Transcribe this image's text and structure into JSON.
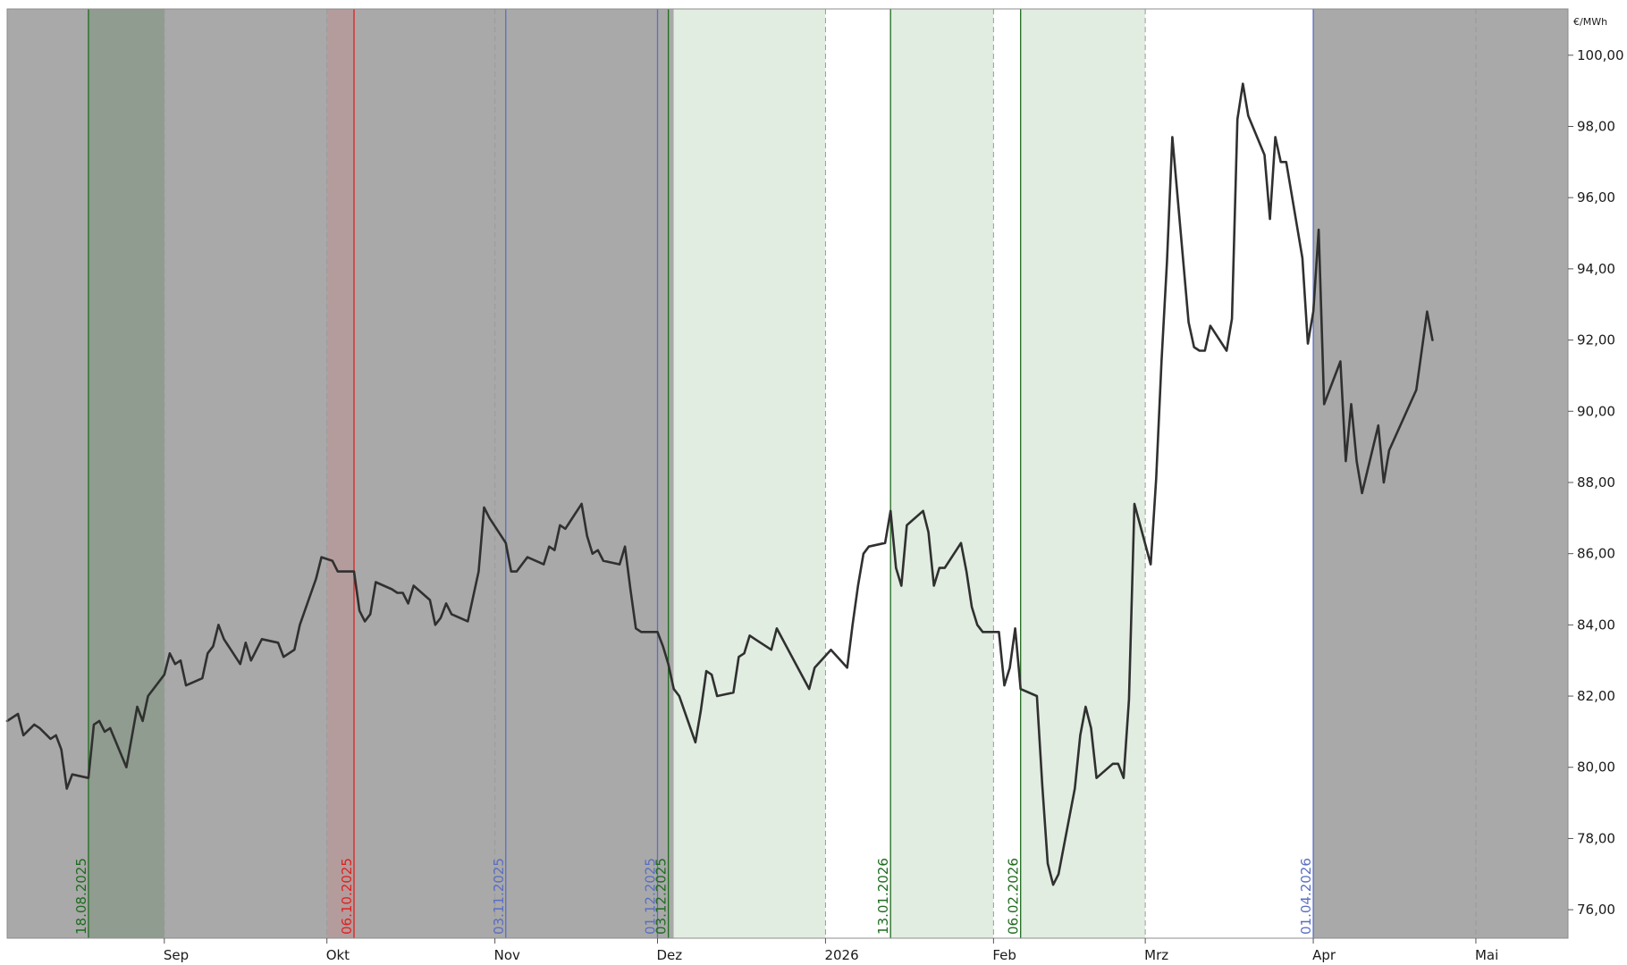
{
  "chart_data": {
    "type": "line",
    "unit": "€/MWh",
    "x_axis": {
      "ticks": [
        {
          "date": "2025-09-01",
          "label": "Sep"
        },
        {
          "date": "2025-10-01",
          "label": "Okt"
        },
        {
          "date": "2025-11-01",
          "label": "Nov"
        },
        {
          "date": "2025-12-01",
          "label": "Dez"
        },
        {
          "date": "2026-01-01",
          "label": "2026"
        },
        {
          "date": "2026-02-01",
          "label": "Feb"
        },
        {
          "date": "2026-03-01",
          "label": "Mrz"
        },
        {
          "date": "2026-04-01",
          "label": "Apr"
        },
        {
          "date": "2026-05-01",
          "label": "Mai"
        }
      ],
      "range": [
        "2025-08-03",
        "2026-05-18"
      ]
    },
    "y_axis": {
      "range": [
        75.2,
        101.3
      ],
      "ticks": [
        "76,00",
        "78,00",
        "80,00",
        "82,00",
        "84,00",
        "86,00",
        "88,00",
        "90,00",
        "92,00",
        "94,00",
        "96,00",
        "98,00",
        "100,00"
      ],
      "tick_values": [
        76,
        78,
        80,
        82,
        84,
        86,
        88,
        90,
        92,
        94,
        96,
        98,
        100
      ],
      "position": "right"
    },
    "background_regions": [
      {
        "from": "2025-08-03",
        "to": "2025-12-04",
        "color": "#a9a9a9"
      },
      {
        "from": "2025-08-18",
        "to": "2025-09-01",
        "color": "#8f9c8f"
      },
      {
        "from": "2025-10-01",
        "to": "2025-10-06",
        "color": "#b59c9c"
      },
      {
        "from": "2025-12-04",
        "to": "2026-01-01",
        "color": "#e1ede1"
      },
      {
        "from": "2026-01-13",
        "to": "2026-02-01",
        "color": "#e1ede1"
      },
      {
        "from": "2026-02-06",
        "to": "2026-03-01",
        "color": "#e1ede1"
      },
      {
        "from": "2026-04-01",
        "to": "2026-05-18",
        "color": "#a9a9a9"
      }
    ],
    "markers": [
      {
        "date": "2025-08-18",
        "label": "18.08.2025",
        "color": "#1f6b1f"
      },
      {
        "date": "2025-10-06",
        "label": "06.10.2025",
        "color": "#e02020"
      },
      {
        "date": "2025-11-03",
        "label": "03.11.2025",
        "color": "#5a6fc4"
      },
      {
        "date": "2025-12-01",
        "label": "01.12.2025",
        "color": "#5a6fc4"
      },
      {
        "date": "2025-12-03",
        "label": "03.12.2025",
        "color": "#1f6b1f"
      },
      {
        "date": "2026-01-13",
        "label": "13.01.2026",
        "color": "#1f6b1f"
      },
      {
        "date": "2026-02-06",
        "label": "06.02.2026",
        "color": "#1f6b1f"
      },
      {
        "date": "2026-04-01",
        "label": "01.04.2026",
        "color": "#5a6fc4"
      }
    ],
    "series": [
      {
        "color": "#303030",
        "points": [
          [
            "2025-08-03",
            81.3
          ],
          [
            "2025-08-05",
            81.5
          ],
          [
            "2025-08-06",
            80.9
          ],
          [
            "2025-08-08",
            81.2
          ],
          [
            "2025-08-09",
            81.1
          ],
          [
            "2025-08-11",
            80.8
          ],
          [
            "2025-08-12",
            80.9
          ],
          [
            "2025-08-13",
            80.5
          ],
          [
            "2025-08-14",
            79.4
          ],
          [
            "2025-08-15",
            79.8
          ],
          [
            "2025-08-18",
            79.7
          ],
          [
            "2025-08-19",
            81.2
          ],
          [
            "2025-08-20",
            81.3
          ],
          [
            "2025-08-21",
            81.0
          ],
          [
            "2025-08-22",
            81.1
          ],
          [
            "2025-08-25",
            80.0
          ],
          [
            "2025-08-27",
            81.7
          ],
          [
            "2025-08-28",
            81.3
          ],
          [
            "2025-08-29",
            82.0
          ],
          [
            "2025-09-01",
            82.6
          ],
          [
            "2025-09-02",
            83.2
          ],
          [
            "2025-09-03",
            82.9
          ],
          [
            "2025-09-04",
            83.0
          ],
          [
            "2025-09-05",
            82.3
          ],
          [
            "2025-09-08",
            82.5
          ],
          [
            "2025-09-09",
            83.2
          ],
          [
            "2025-09-10",
            83.4
          ],
          [
            "2025-09-11",
            84.0
          ],
          [
            "2025-09-12",
            83.6
          ],
          [
            "2025-09-15",
            82.9
          ],
          [
            "2025-09-16",
            83.5
          ],
          [
            "2025-09-17",
            83.0
          ],
          [
            "2025-09-18",
            83.3
          ],
          [
            "2025-09-19",
            83.6
          ],
          [
            "2025-09-22",
            83.5
          ],
          [
            "2025-09-23",
            83.1
          ],
          [
            "2025-09-25",
            83.3
          ],
          [
            "2025-09-26",
            84.0
          ],
          [
            "2025-09-29",
            85.3
          ],
          [
            "2025-09-30",
            85.9
          ],
          [
            "2025-10-02",
            85.8
          ],
          [
            "2025-10-03",
            85.5
          ],
          [
            "2025-10-06",
            85.5
          ],
          [
            "2025-10-07",
            84.4
          ],
          [
            "2025-10-08",
            84.1
          ],
          [
            "2025-10-09",
            84.3
          ],
          [
            "2025-10-10",
            85.2
          ],
          [
            "2025-10-13",
            85.0
          ],
          [
            "2025-10-14",
            84.9
          ],
          [
            "2025-10-15",
            84.9
          ],
          [
            "2025-10-16",
            84.6
          ],
          [
            "2025-10-17",
            85.1
          ],
          [
            "2025-10-20",
            84.7
          ],
          [
            "2025-10-21",
            84.0
          ],
          [
            "2025-10-22",
            84.2
          ],
          [
            "2025-10-23",
            84.6
          ],
          [
            "2025-10-24",
            84.3
          ],
          [
            "2025-10-27",
            84.1
          ],
          [
            "2025-10-29",
            85.5
          ],
          [
            "2025-10-30",
            87.3
          ],
          [
            "2025-10-31",
            87.0
          ],
          [
            "2025-11-03",
            86.3
          ],
          [
            "2025-11-04",
            85.5
          ],
          [
            "2025-11-05",
            85.5
          ],
          [
            "2025-11-06",
            85.7
          ],
          [
            "2025-11-07",
            85.9
          ],
          [
            "2025-11-10",
            85.7
          ],
          [
            "2025-11-11",
            86.2
          ],
          [
            "2025-11-12",
            86.1
          ],
          [
            "2025-11-13",
            86.8
          ],
          [
            "2025-11-14",
            86.7
          ],
          [
            "2025-11-17",
            87.4
          ],
          [
            "2025-11-18",
            86.5
          ],
          [
            "2025-11-19",
            86.0
          ],
          [
            "2025-11-20",
            86.1
          ],
          [
            "2025-11-21",
            85.8
          ],
          [
            "2025-11-24",
            85.7
          ],
          [
            "2025-11-25",
            86.2
          ],
          [
            "2025-11-26",
            85.0
          ],
          [
            "2025-11-27",
            83.9
          ],
          [
            "2025-11-28",
            83.8
          ],
          [
            "2025-12-01",
            83.8
          ],
          [
            "2025-12-02",
            83.4
          ],
          [
            "2025-12-03",
            82.9
          ],
          [
            "2025-12-04",
            82.2
          ],
          [
            "2025-12-05",
            82.0
          ],
          [
            "2025-12-08",
            80.7
          ],
          [
            "2025-12-09",
            81.6
          ],
          [
            "2025-12-10",
            82.7
          ],
          [
            "2025-12-11",
            82.6
          ],
          [
            "2025-12-12",
            82.0
          ],
          [
            "2025-12-15",
            82.1
          ],
          [
            "2025-12-16",
            83.1
          ],
          [
            "2025-12-17",
            83.2
          ],
          [
            "2025-12-18",
            83.7
          ],
          [
            "2025-12-19",
            83.6
          ],
          [
            "2025-12-22",
            83.3
          ],
          [
            "2025-12-23",
            83.9
          ],
          [
            "2025-12-29",
            82.2
          ],
          [
            "2025-12-30",
            82.8
          ],
          [
            "2026-01-02",
            83.3
          ],
          [
            "2026-01-05",
            82.8
          ],
          [
            "2026-01-06",
            84.0
          ],
          [
            "2026-01-07",
            85.1
          ],
          [
            "2026-01-08",
            86.0
          ],
          [
            "2026-01-09",
            86.2
          ],
          [
            "2026-01-12",
            86.3
          ],
          [
            "2026-01-13",
            87.2
          ],
          [
            "2026-01-14",
            85.6
          ],
          [
            "2026-01-15",
            85.1
          ],
          [
            "2026-01-16",
            86.8
          ],
          [
            "2026-01-19",
            87.2
          ],
          [
            "2026-01-20",
            86.6
          ],
          [
            "2026-01-21",
            85.1
          ],
          [
            "2026-01-22",
            85.6
          ],
          [
            "2026-01-23",
            85.6
          ],
          [
            "2026-01-26",
            86.3
          ],
          [
            "2026-01-27",
            85.5
          ],
          [
            "2026-01-28",
            84.5
          ],
          [
            "2026-01-29",
            84.0
          ],
          [
            "2026-01-30",
            83.8
          ],
          [
            "2026-02-02",
            83.8
          ],
          [
            "2026-02-03",
            82.3
          ],
          [
            "2026-02-04",
            82.8
          ],
          [
            "2026-02-05",
            83.9
          ],
          [
            "2026-02-06",
            82.2
          ],
          [
            "2026-02-09",
            82.0
          ],
          [
            "2026-02-10",
            79.5
          ],
          [
            "2026-02-11",
            77.3
          ],
          [
            "2026-02-12",
            76.7
          ],
          [
            "2026-02-13",
            77.0
          ],
          [
            "2026-02-16",
            79.4
          ],
          [
            "2026-02-17",
            80.9
          ],
          [
            "2026-02-18",
            81.7
          ],
          [
            "2026-02-19",
            81.1
          ],
          [
            "2026-02-20",
            79.7
          ],
          [
            "2026-02-23",
            80.1
          ],
          [
            "2026-02-24",
            80.1
          ],
          [
            "2026-02-25",
            79.7
          ],
          [
            "2026-02-26",
            81.9
          ],
          [
            "2026-02-27",
            87.4
          ],
          [
            "2026-03-02",
            85.7
          ],
          [
            "2026-03-03",
            88.1
          ],
          [
            "2026-03-04",
            91.4
          ],
          [
            "2026-03-05",
            94.2
          ],
          [
            "2026-03-06",
            97.7
          ],
          [
            "2026-03-09",
            92.5
          ],
          [
            "2026-03-10",
            91.8
          ],
          [
            "2026-03-11",
            91.7
          ],
          [
            "2026-03-12",
            91.7
          ],
          [
            "2026-03-13",
            92.4
          ],
          [
            "2026-03-16",
            91.7
          ],
          [
            "2026-03-17",
            92.6
          ],
          [
            "2026-03-18",
            98.2
          ],
          [
            "2026-03-19",
            99.2
          ],
          [
            "2026-03-20",
            98.3
          ],
          [
            "2026-03-23",
            97.2
          ],
          [
            "2026-03-24",
            95.4
          ],
          [
            "2026-03-25",
            97.7
          ],
          [
            "2026-03-26",
            97.0
          ],
          [
            "2026-03-27",
            97.0
          ],
          [
            "2026-03-30",
            94.3
          ],
          [
            "2026-03-31",
            91.9
          ],
          [
            "2026-04-01",
            92.8
          ],
          [
            "2026-04-02",
            95.1
          ],
          [
            "2026-04-03",
            90.2
          ],
          [
            "2026-04-06",
            91.4
          ],
          [
            "2026-04-07",
            88.6
          ],
          [
            "2026-04-08",
            90.2
          ],
          [
            "2026-04-09",
            88.6
          ],
          [
            "2026-04-10",
            87.7
          ],
          [
            "2026-04-13",
            89.6
          ],
          [
            "2026-04-14",
            88.0
          ],
          [
            "2026-04-15",
            88.9
          ],
          [
            "2026-04-20",
            90.6
          ],
          [
            "2026-04-22",
            92.8
          ],
          [
            "2026-04-23",
            92.0
          ]
        ]
      }
    ]
  }
}
